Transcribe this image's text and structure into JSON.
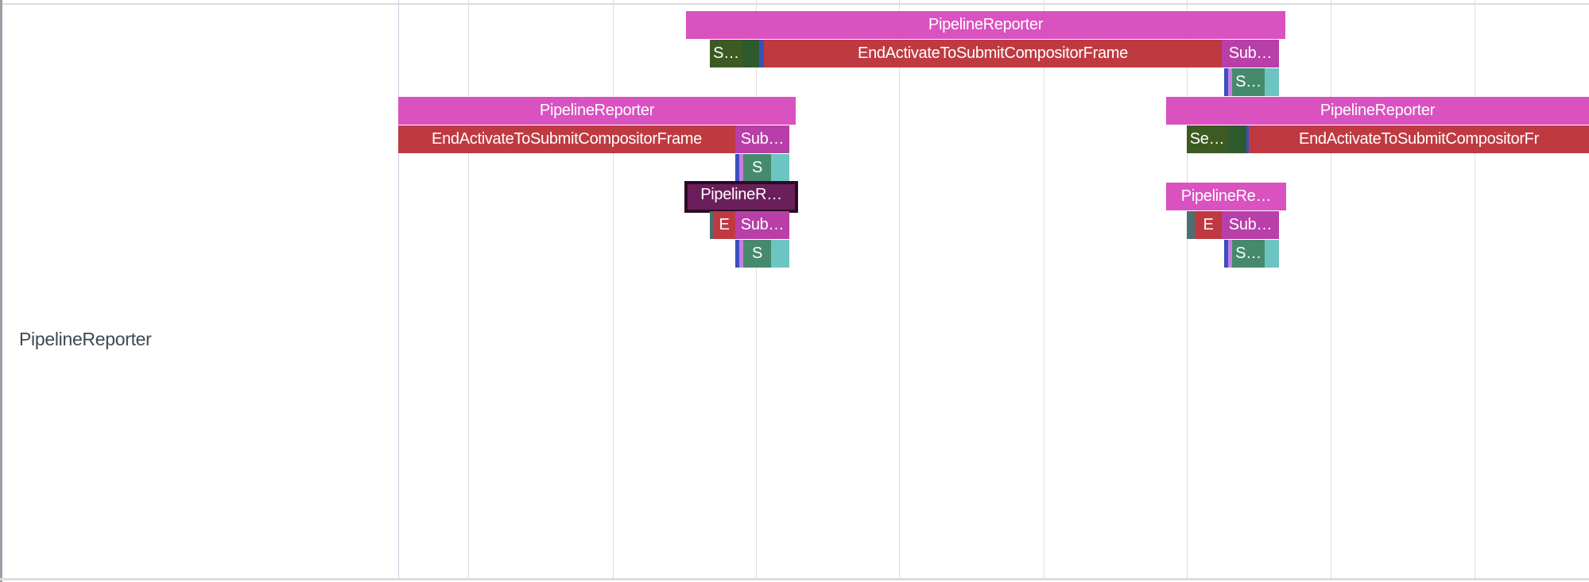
{
  "track": {
    "label": "PipelineReporter"
  },
  "colors": {
    "pipeline_reporter": "#d952c0",
    "selected": "#6a1f5a",
    "end_activate": "#bf3a40",
    "submit": "#b83fa8",
    "dark_green": "#3d5a22",
    "green": "#2e5a2e",
    "blue": "#3a4fc0",
    "lilac": "#c77ee0",
    "sea_green": "#468a6e",
    "teal": "#6cc5c0",
    "slate": "#4a7070"
  },
  "slices": [
    {
      "label": "PipelineReporter",
      "color": "#d952c0"
    },
    {
      "label": "S…",
      "color": "#3d5a22"
    },
    {
      "label": "",
      "color": "#2e5a2e"
    },
    {
      "label": "",
      "color": "#3a4fc0"
    },
    {
      "label": "EndActivateToSubmitCompositorFrame",
      "color": "#bf3a40"
    },
    {
      "label": "Sub…",
      "color": "#b83fa8"
    },
    {
      "label": "",
      "color": "#3a4fc0"
    },
    {
      "label": "",
      "color": "#c77ee0"
    },
    {
      "label": "S…",
      "color": "#468a6e"
    },
    {
      "label": "",
      "color": "#6cc5c0"
    },
    {
      "label": "PipelineReporter",
      "color": "#d952c0"
    },
    {
      "label": "PipelineReporter",
      "color": "#d952c0"
    },
    {
      "label": "EndActivateToSubmitCompositorFrame",
      "color": "#bf3a40"
    },
    {
      "label": "Sub…",
      "color": "#b83fa8"
    },
    {
      "label": "Se…",
      "color": "#3d5a22"
    },
    {
      "label": "",
      "color": "#2e5a2e"
    },
    {
      "label": "",
      "color": "#3a4fc0"
    },
    {
      "label": "EndActivateToSubmitCompositorFr",
      "color": "#bf3a40"
    },
    {
      "label": "",
      "color": "#3a4fc0"
    },
    {
      "label": "",
      "color": "#c77ee0"
    },
    {
      "label": "S",
      "color": "#468a6e"
    },
    {
      "label": "",
      "color": "#6cc5c0"
    },
    {
      "label": "PipelineR…",
      "color": "#6a1f5a",
      "selected": true
    },
    {
      "label": "PipelineRe…",
      "color": "#d952c0"
    },
    {
      "label": "",
      "color": "#4a7070"
    },
    {
      "label": "E",
      "color": "#bf3a40"
    },
    {
      "label": "Sub…",
      "color": "#b83fa8"
    },
    {
      "label": "",
      "color": "#4a7070"
    },
    {
      "label": "E",
      "color": "#bf3a40"
    },
    {
      "label": "Sub…",
      "color": "#b83fa8"
    },
    {
      "label": "",
      "color": "#3a4fc0"
    },
    {
      "label": "",
      "color": "#c77ee0"
    },
    {
      "label": "S",
      "color": "#468a6e"
    },
    {
      "label": "",
      "color": "#6cc5c0"
    },
    {
      "label": "",
      "color": "#3a4fc0"
    },
    {
      "label": "",
      "color": "#c77ee0"
    },
    {
      "label": "S…",
      "color": "#468a6e"
    },
    {
      "label": "",
      "color": "#6cc5c0"
    }
  ]
}
